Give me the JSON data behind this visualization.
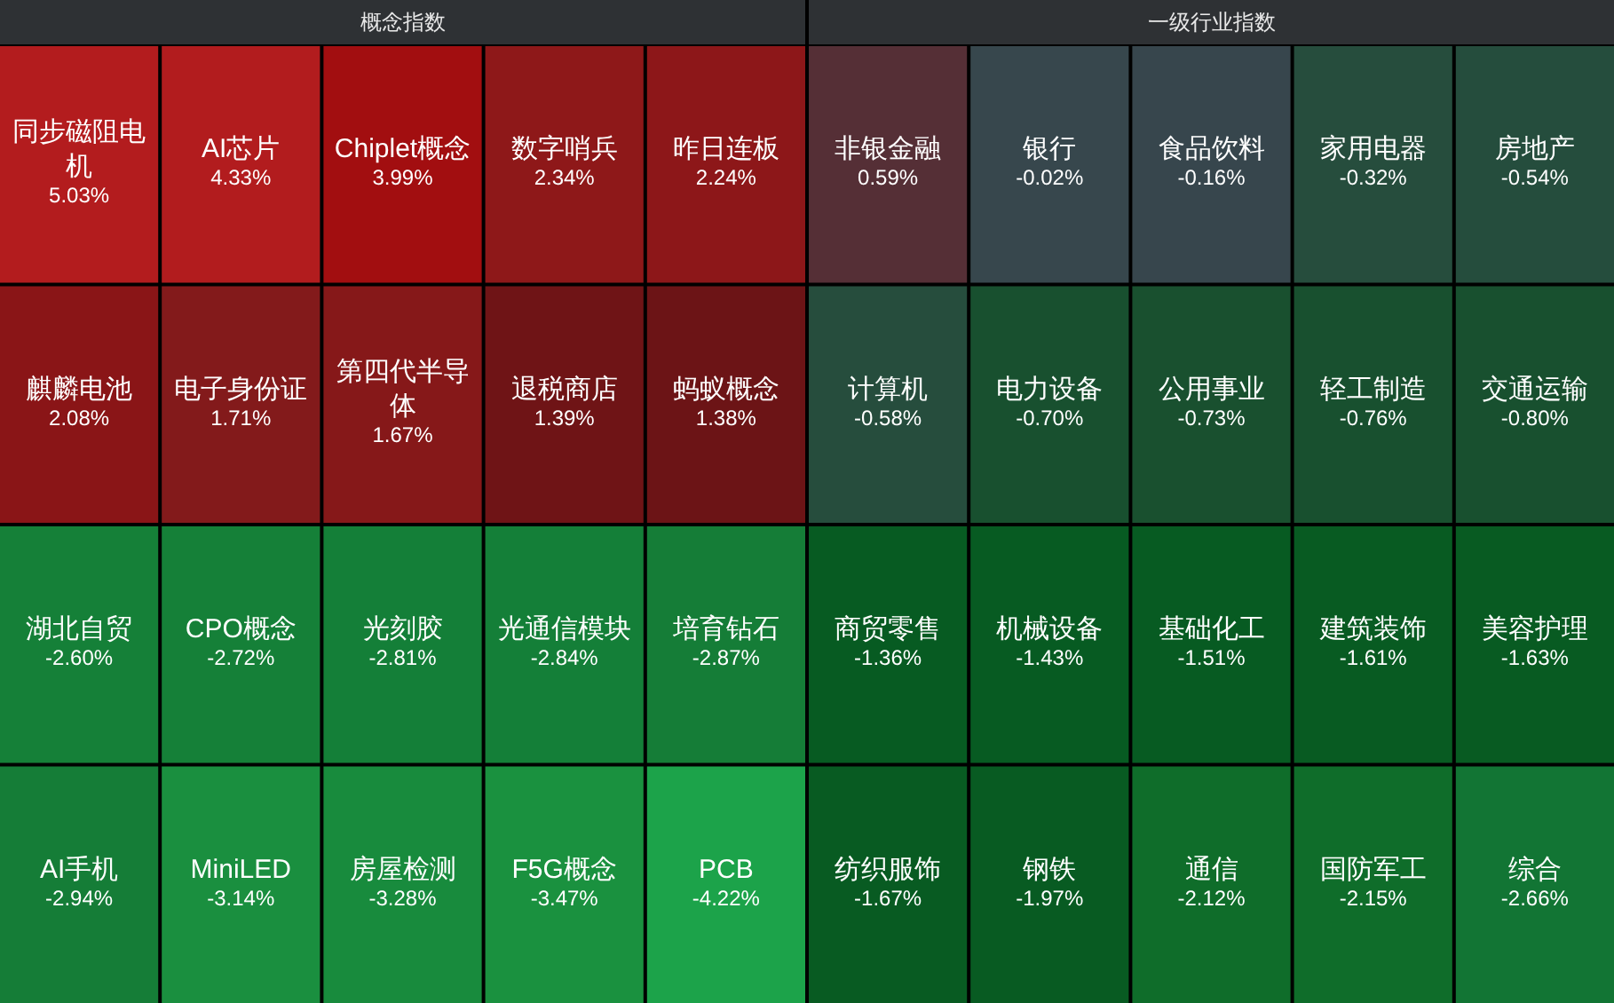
{
  "chart_data": [
    {
      "type": "other",
      "title": "概念指数",
      "categories": [
        "同步磁阻电机",
        "AI芯片",
        "Chiplet概念",
        "数字哨兵",
        "昨日连板",
        "麒麟电池",
        "电子身份证",
        "第四代半导体",
        "退税商店",
        "蚂蚁概念",
        "湖北自贸",
        "CPO概念",
        "光刻胶",
        "光通信模块",
        "培育钻石",
        "AI手机",
        "MiniLED",
        "房屋检测",
        "F5G概念",
        "PCB"
      ],
      "values": [
        5.03,
        4.33,
        3.99,
        2.34,
        2.24,
        2.08,
        1.71,
        1.67,
        1.39,
        1.38,
        -2.6,
        -2.72,
        -2.81,
        -2.84,
        -2.87,
        -2.94,
        -3.14,
        -3.28,
        -3.47,
        -4.22
      ],
      "value_labels": [
        "5.03%",
        "4.33%",
        "3.99%",
        "2.34%",
        "2.24%",
        "2.08%",
        "1.71%",
        "1.67%",
        "1.39%",
        "1.38%",
        "-2.60%",
        "-2.72%",
        "-2.81%",
        "-2.84%",
        "-2.87%",
        "-2.94%",
        "-3.14%",
        "-3.28%",
        "-3.47%",
        "-4.22%"
      ],
      "colors": [
        "#b31c1e",
        "#b21c1e",
        "#a20e10",
        "#8e1819",
        "#8d1719",
        "#8a1517",
        "#831a1b",
        "#861819",
        "#6f1416",
        "#6c1416",
        "#158038",
        "#158038",
        "#147f38",
        "#147f38",
        "#157d37",
        "#157d37",
        "#1a8f3f",
        "#188b3d",
        "#1a913f",
        "#1ca34a"
      ]
    },
    {
      "type": "other",
      "title": "一级行业指数",
      "categories": [
        "非银金融",
        "银行",
        "食品饮料",
        "家用电器",
        "房地产",
        "计算机",
        "电力设备",
        "公用事业",
        "轻工制造",
        "交通运输",
        "商贸零售",
        "机械设备",
        "基础化工",
        "建筑装饰",
        "美容护理",
        "纺织服饰",
        "钢铁",
        "通信",
        "国防军工",
        "综合"
      ],
      "values": [
        0.59,
        -0.02,
        -0.16,
        -0.32,
        -0.54,
        -0.58,
        -0.7,
        -0.73,
        -0.76,
        -0.8,
        -1.36,
        -1.43,
        -1.51,
        -1.61,
        -1.63,
        -1.67,
        -1.97,
        -2.12,
        -2.15,
        -2.66
      ],
      "value_labels": [
        "0.59%",
        "-0.02%",
        "-0.16%",
        "-0.32%",
        "-0.54%",
        "-0.58%",
        "-0.70%",
        "-0.73%",
        "-0.76%",
        "-0.80%",
        "-1.36%",
        "-1.43%",
        "-1.51%",
        "-1.61%",
        "-1.63%",
        "-1.67%",
        "-1.97%",
        "-2.12%",
        "-2.15%",
        "-2.66%"
      ],
      "colors": [
        "#552f36",
        "#37474d",
        "#37464d",
        "#264d3d",
        "#254d3d",
        "#264d3d",
        "#18502f",
        "#19502f",
        "#18502f",
        "#18502f",
        "#075b22",
        "#075b22",
        "#075b22",
        "#085b22",
        "#085b22",
        "#085b22",
        "#085b22",
        "#0f6d2a",
        "#0f6d2a",
        "#127534"
      ]
    }
  ]
}
